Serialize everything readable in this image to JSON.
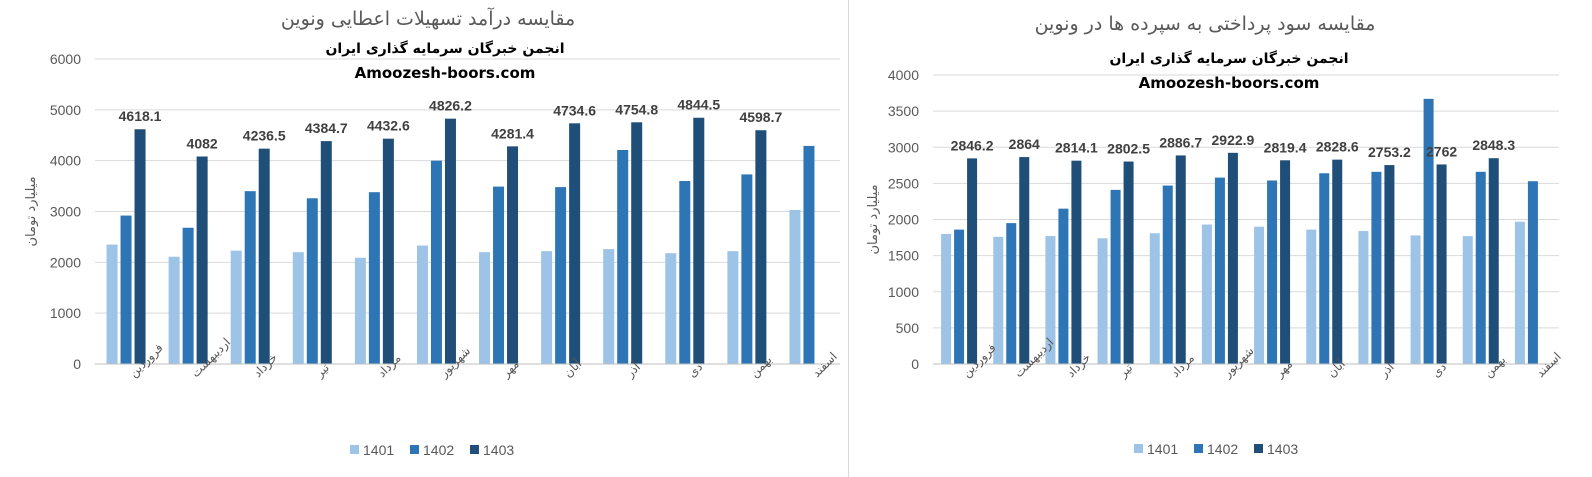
{
  "charts": {
    "left": {
      "title": "مقایسه درآمد تسهیلات اعطایی ونوین",
      "subtitle": "انجمن خبرگان سرمایه گذاری ایران",
      "website": "Amoozesh-boors.com"
    },
    "right": {
      "title": "مقایسه سود پرداختی به سپرده ها در ونوین",
      "subtitle": "انجمن خبرگان سرمایه گذاری ایران",
      "website": "Amoozesh-boors.com"
    }
  },
  "chart_data": [
    {
      "type": "bar",
      "title": "مقایسه درآمد تسهیلات اعطایی ونوین",
      "ylabel": "میلیارد تومان",
      "xlabel": "",
      "ylim": [
        0,
        6000
      ],
      "yticks": [
        0,
        1000,
        2000,
        3000,
        4000,
        5000,
        6000
      ],
      "grid": true,
      "legend": "bottom",
      "categories": [
        "فروردین",
        "اردیبهشت",
        "خرداد",
        "تیر",
        "مرداد",
        "شهریور",
        "مهر",
        "آبان",
        "آذر",
        "دی",
        "بهمن",
        "اسفند"
      ],
      "series": [
        {
          "name": "1401",
          "color": "#9dc3e6",
          "values": [
            2350,
            2110,
            2230,
            2200,
            2090,
            2330,
            2200,
            2220,
            2260,
            2180,
            2220,
            3030
          ]
        },
        {
          "name": "1402",
          "color": "#2e75b6",
          "values": [
            2920,
            2680,
            3400,
            3260,
            3380,
            4000,
            3490,
            3480,
            4210,
            3600,
            3730,
            4290
          ]
        },
        {
          "name": "1403",
          "color": "#1f4e79",
          "values": [
            4618.1,
            4082,
            4236.5,
            4384.7,
            4432.6,
            4826.2,
            4281.4,
            4734.6,
            4754.8,
            4844.5,
            4598.7,
            null
          ],
          "labels": [
            "4618.1",
            "4082",
            "4236.5",
            "4384.7",
            "4432.6",
            "4826.2",
            "4281.4",
            "4734.6",
            "4754.8",
            "4844.5",
            "4598.7",
            ""
          ]
        }
      ]
    },
    {
      "type": "bar",
      "title": "مقایسه سود پرداختی به سپرده ها در ونوین",
      "ylabel": "میلیارد تومان",
      "xlabel": "",
      "ylim": [
        0,
        4000
      ],
      "yticks": [
        0,
        500,
        1000,
        1500,
        2000,
        2500,
        3000,
        3500,
        4000
      ],
      "grid": true,
      "legend": "bottom",
      "categories": [
        "فروردین",
        "اردیبهشت",
        "خرداد",
        "تیر",
        "مرداد",
        "شهریور",
        "مهر",
        "آبان",
        "آذر",
        "دی",
        "بهمن",
        "اسفند"
      ],
      "series": [
        {
          "name": "1401",
          "color": "#9dc3e6",
          "values": [
            1800,
            1760,
            1770,
            1740,
            1810,
            1930,
            1900,
            1860,
            1840,
            1780,
            1770,
            1970
          ]
        },
        {
          "name": "1402",
          "color": "#2e75b6",
          "values": [
            1860,
            1950,
            2150,
            2410,
            2470,
            2580,
            2540,
            2640,
            2660,
            3670,
            2660,
            2530
          ]
        },
        {
          "name": "1403",
          "color": "#1f4e79",
          "values": [
            2846.2,
            2864,
            2814.1,
            2802.5,
            2886.7,
            2922.9,
            2819.4,
            2828.6,
            2753.2,
            2762,
            2848.3,
            null
          ],
          "labels": [
            "2846.2",
            "2864",
            "2814.1",
            "2802.5",
            "2886.7",
            "2922.9",
            "2819.4",
            "2828.6",
            "2753.2",
            "2762",
            "2848.3",
            ""
          ]
        }
      ]
    }
  ]
}
